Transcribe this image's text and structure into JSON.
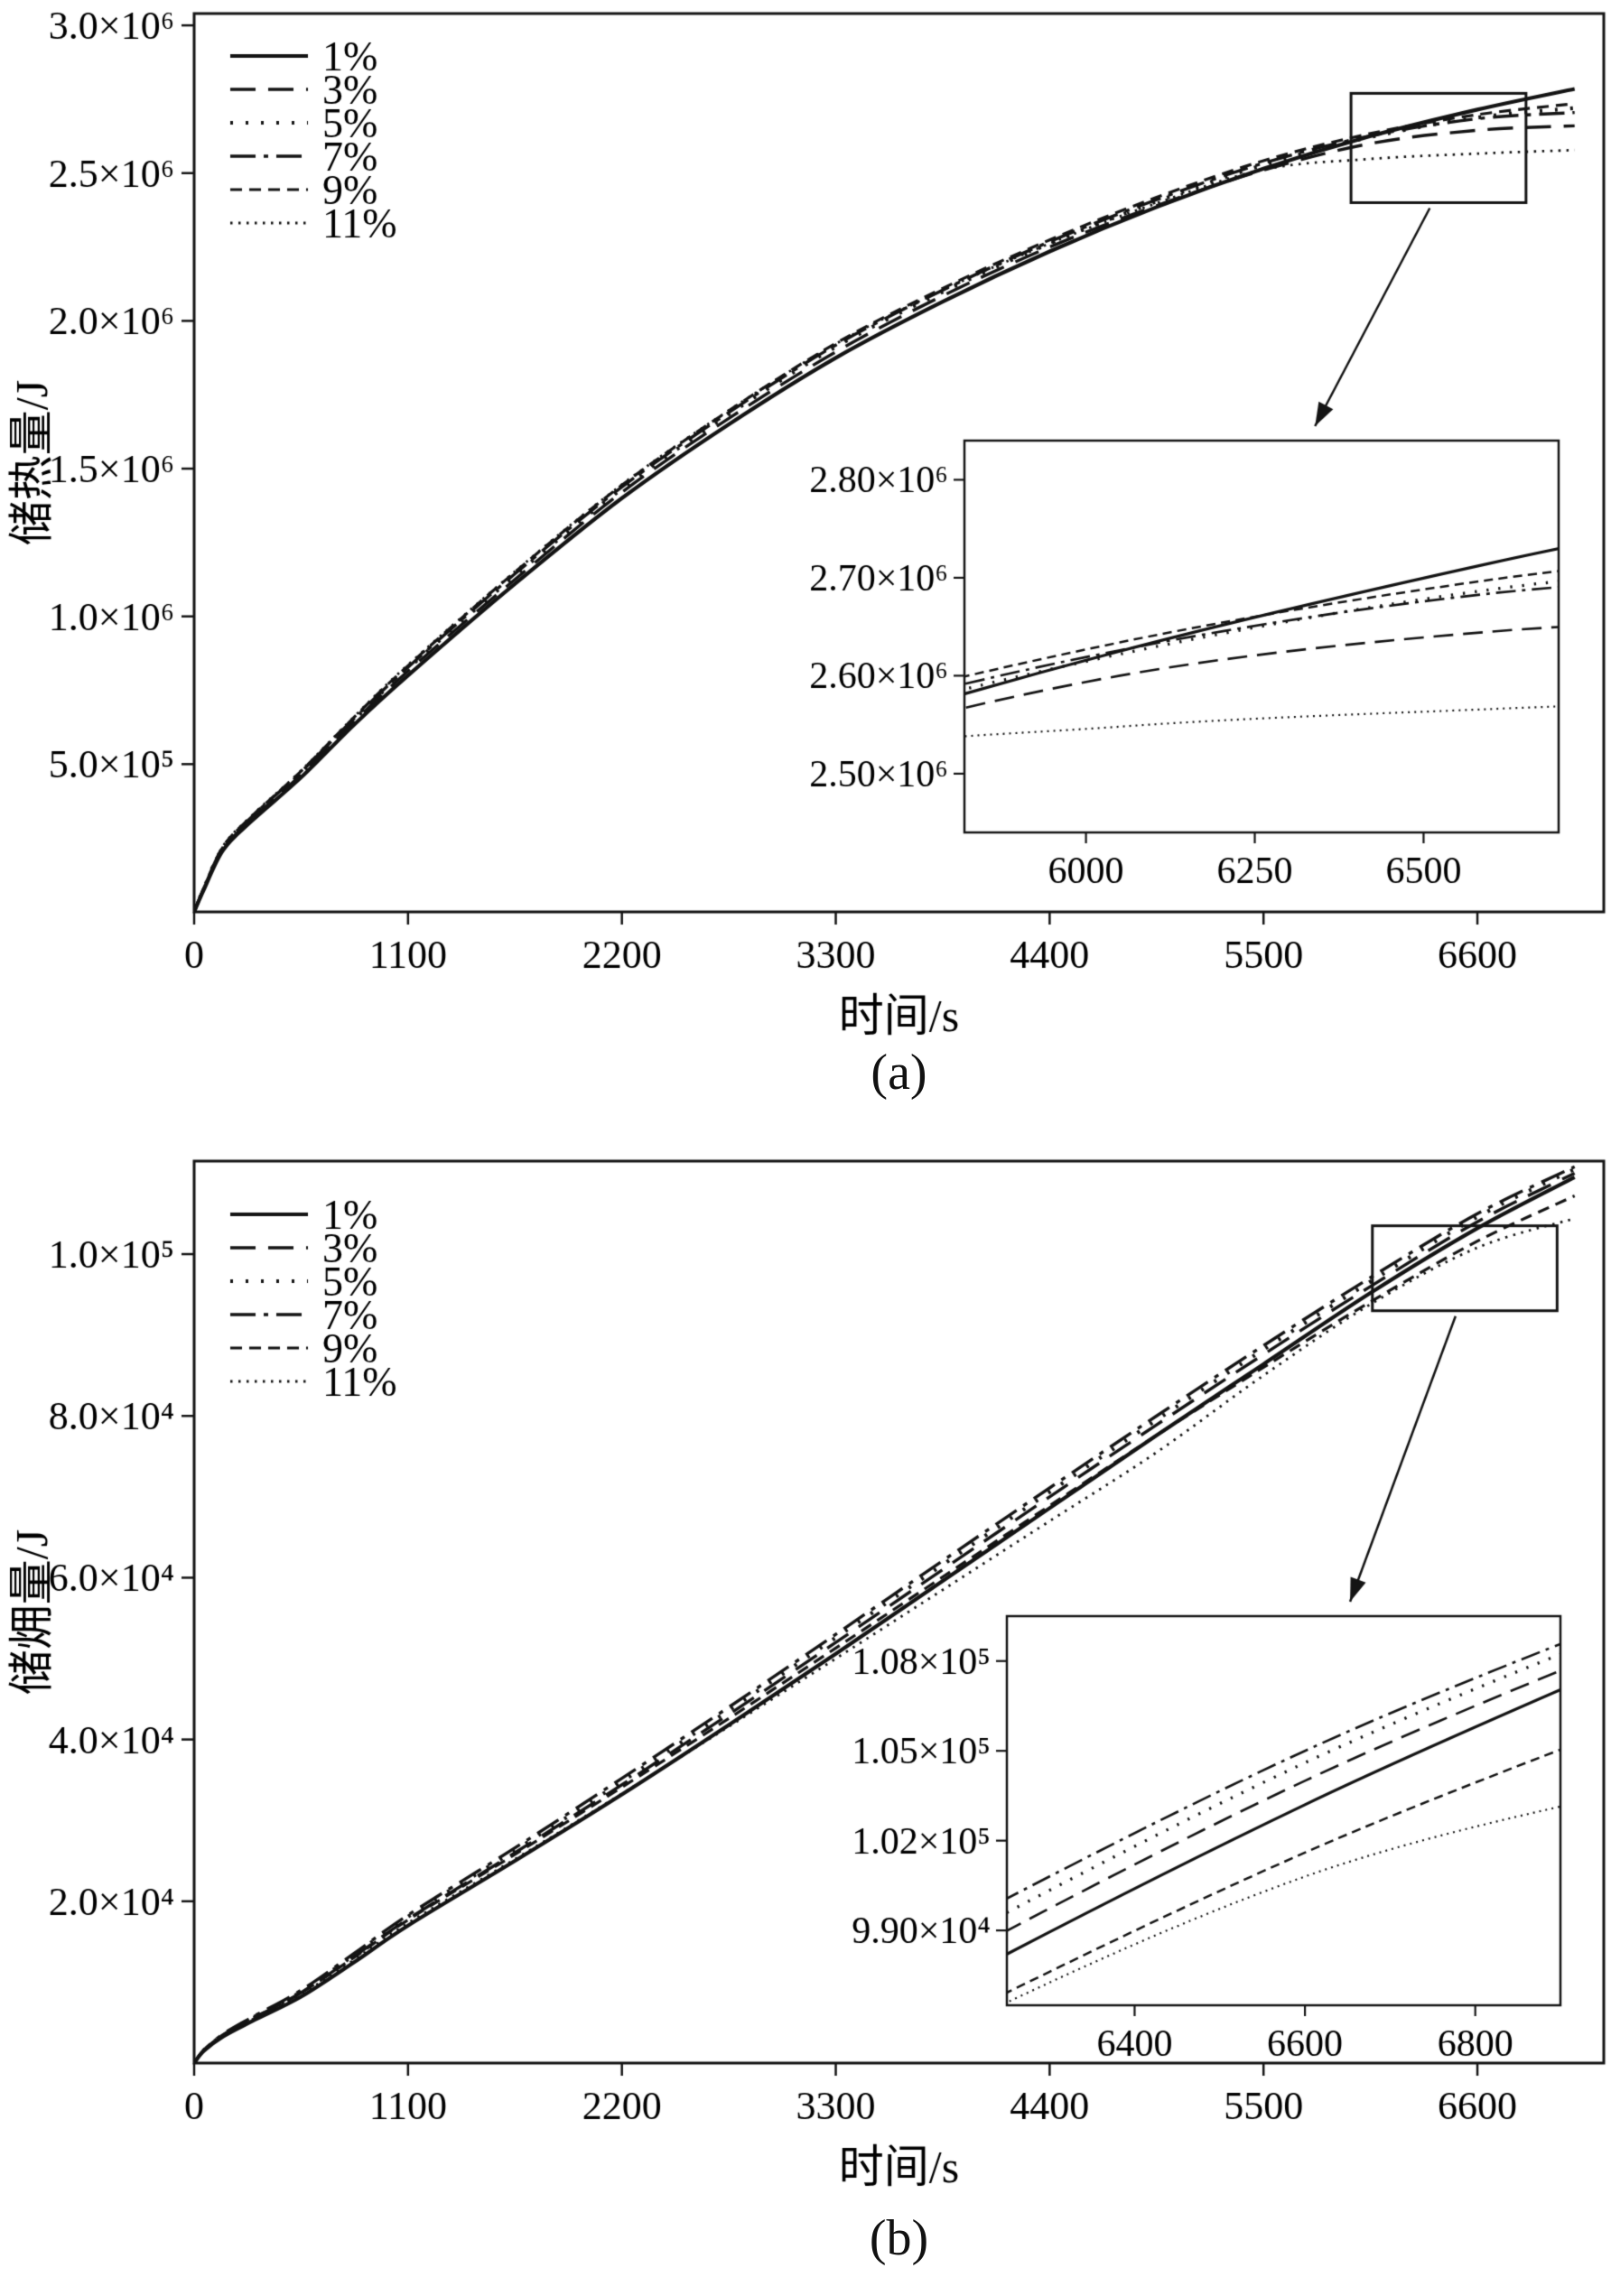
{
  "figure": {
    "background": "#ffffff",
    "line_color": "#141414"
  },
  "chart_data": [
    {
      "id": "a",
      "type": "line",
      "caption": "(a)",
      "xlabel": "时间/s",
      "ylabel": "储热量/J",
      "xlim": [
        0,
        7250
      ],
      "ylim": [
        0,
        3040000
      ],
      "grid": false,
      "legend_position": "top-left",
      "xticks": {
        "values": [
          0,
          1100,
          2200,
          3300,
          4400,
          5500,
          6600
        ],
        "labels": [
          "0",
          "1100",
          "2200",
          "3300",
          "4400",
          "5500",
          "6600"
        ]
      },
      "yticks": {
        "values": [
          500000,
          1000000,
          1500000,
          2000000,
          2500000,
          3000000
        ],
        "labels": [
          "5.0×10⁵",
          "1.0×10⁶",
          "1.5×10⁶",
          "2.0×10⁶",
          "2.5×10⁶",
          "3.0×10⁶"
        ]
      },
      "x": [
        0,
        50,
        150,
        300,
        550,
        825,
        1100,
        1650,
        2200,
        2750,
        3300,
        3850,
        4400,
        4950,
        5500,
        6050,
        6600,
        7100
      ],
      "series": [
        {
          "name": "1%",
          "style": "solid",
          "values": [
            0,
            75000,
            210000,
            310000,
            455000,
            635000,
            800000,
            1110000,
            1400000,
            1650000,
            1875000,
            2065000,
            2235000,
            2385000,
            2515000,
            2625000,
            2715000,
            2785000
          ]
        },
        {
          "name": "3%",
          "style": "dash",
          "values": [
            0,
            78000,
            215000,
            315000,
            465000,
            645000,
            815000,
            1125000,
            1420000,
            1670000,
            1895000,
            2085000,
            2250000,
            2390000,
            2510000,
            2600000,
            2645000,
            2660000
          ]
        },
        {
          "name": "5%",
          "style": "dot-sparse",
          "values": [
            0,
            80000,
            220000,
            320000,
            470000,
            652000,
            824000,
            1138000,
            1432000,
            1684000,
            1912000,
            2098000,
            2262000,
            2404000,
            2528000,
            2622000,
            2688000,
            2720000
          ]
        },
        {
          "name": "7%",
          "style": "dashdot",
          "values": [
            0,
            80000,
            220000,
            324000,
            474000,
            656000,
            828000,
            1144000,
            1438000,
            1690000,
            1918000,
            2104000,
            2268000,
            2410000,
            2534000,
            2626000,
            2684000,
            2705000
          ]
        },
        {
          "name": "9%",
          "style": "dash-med",
          "values": [
            0,
            81000,
            222000,
            326000,
            476000,
            660000,
            833000,
            1150000,
            1444000,
            1696000,
            1924000,
            2110000,
            2274000,
            2418000,
            2542000,
            2634000,
            2698000,
            2735000
          ]
        },
        {
          "name": "11%",
          "style": "dot-fine",
          "values": [
            0,
            82000,
            224000,
            328000,
            478000,
            662000,
            836000,
            1152000,
            1446000,
            1697000,
            1922000,
            2104000,
            2262000,
            2398000,
            2512000,
            2548000,
            2566000,
            2578000
          ]
        }
      ],
      "zoom_rect": {
        "x": [
          5950,
          6850
        ],
        "y": [
          2400000,
          2770000
        ]
      },
      "inset": {
        "xlim": [
          5820,
          6700
        ],
        "ylim": [
          2440000,
          2840000
        ],
        "xticks": {
          "values": [
            6000,
            6250,
            6500
          ],
          "labels": [
            "6000",
            "6250",
            "6500"
          ]
        },
        "yticks": {
          "values": [
            2500000,
            2600000,
            2700000,
            2800000
          ],
          "labels": [
            "2.50×10⁶",
            "2.60×10⁶",
            "2.70×10⁶",
            "2.80×10⁶"
          ]
        }
      }
    },
    {
      "id": "b",
      "type": "line",
      "caption": "(b)",
      "xlabel": "时间/s",
      "ylabel": "储㶲量/J",
      "xlim": [
        0,
        7250
      ],
      "ylim": [
        0,
        111500
      ],
      "grid": false,
      "legend_position": "top-left",
      "xticks": {
        "values": [
          0,
          1100,
          2200,
          3300,
          4400,
          5500,
          6600
        ],
        "labels": [
          "0",
          "1100",
          "2200",
          "3300",
          "4400",
          "5500",
          "6600"
        ]
      },
      "yticks": {
        "values": [
          20000,
          40000,
          60000,
          80000,
          100000
        ],
        "labels": [
          "2.0×10⁴",
          "4.0×10⁴",
          "6.0×10⁴",
          "8.0×10⁴",
          "1.0×10⁵"
        ]
      },
      "x": [
        0,
        50,
        150,
        300,
        550,
        825,
        1100,
        1650,
        2200,
        2750,
        3300,
        3850,
        4400,
        4950,
        5500,
        6050,
        6600,
        7100
      ],
      "series": [
        {
          "name": "1%",
          "style": "solid",
          "values": [
            0,
            1500,
            3300,
            5200,
            8200,
            12500,
            17000,
            25000,
            33200,
            41800,
            50600,
            59600,
            68600,
            77600,
            86400,
            95200,
            103200,
            109500
          ]
        },
        {
          "name": "3%",
          "style": "dash",
          "values": [
            0,
            1600,
            3500,
            5500,
            8700,
            13200,
            17800,
            26000,
            34400,
            43100,
            52000,
            61000,
            70000,
            78900,
            87600,
            96000,
            104000,
            110000
          ]
        },
        {
          "name": "5%",
          "style": "dot-sparse",
          "values": [
            0,
            1600,
            3500,
            5600,
            8800,
            13400,
            18100,
            26300,
            34800,
            43600,
            52600,
            61600,
            70600,
            79500,
            88200,
            96600,
            104600,
            110500
          ]
        },
        {
          "name": "7%",
          "style": "dashdot",
          "values": [
            0,
            1600,
            3600,
            5700,
            9000,
            13600,
            18300,
            26600,
            35200,
            44000,
            53000,
            62100,
            71100,
            80000,
            88700,
            97100,
            105000,
            110800
          ]
        },
        {
          "name": "9%",
          "style": "dash-med",
          "values": [
            0,
            1600,
            3500,
            5500,
            8700,
            13100,
            17700,
            25800,
            34100,
            42600,
            51300,
            60100,
            68900,
            77600,
            86000,
            94100,
            101600,
            107200
          ]
        },
        {
          "name": "11%",
          "style": "dot-fine",
          "values": [
            0,
            1500,
            3400,
            5400,
            8500,
            12800,
            17300,
            25200,
            33300,
            41600,
            50000,
            58500,
            67000,
            75500,
            85000,
            93800,
            100800,
            104400
          ]
        }
      ],
      "zoom_rect": {
        "x": [
          6060,
          7010
        ],
        "y": [
          93000,
          103500
        ]
      },
      "inset": {
        "xlim": [
          6250,
          6900
        ],
        "ylim": [
          96500,
          109500
        ],
        "xticks": {
          "values": [
            6400,
            6600,
            6800
          ],
          "labels": [
            "6400",
            "6600",
            "6800"
          ]
        },
        "yticks": {
          "values": [
            99000,
            102000,
            105000,
            108000
          ],
          "labels": [
            "9.90×10⁴",
            "1.02×10⁵",
            "1.05×10⁵",
            "1.08×10⁵"
          ]
        }
      }
    }
  ]
}
